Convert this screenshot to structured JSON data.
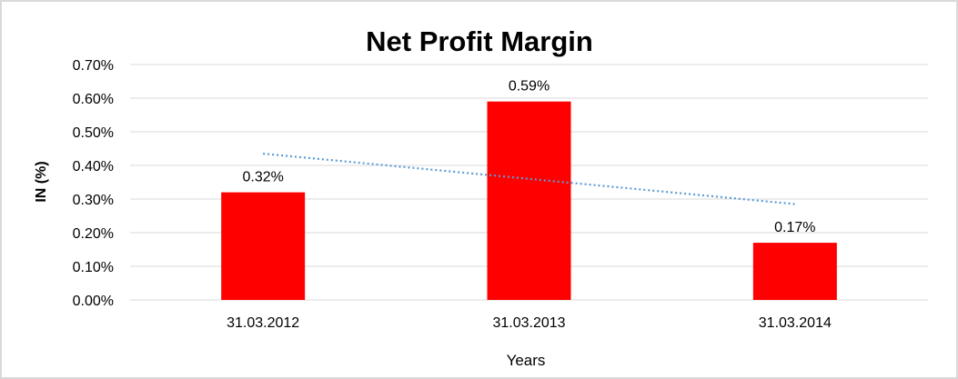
{
  "chart_data": {
    "type": "bar",
    "title": "Net Profit Margin",
    "xlabel": "Years",
    "ylabel": "IN (%)",
    "categories": [
      "31.03.2012",
      "31.03.2013",
      "31.03.2014"
    ],
    "values": [
      0.32,
      0.59,
      0.17
    ],
    "data_labels": [
      "0.32%",
      "0.59%",
      "0.17%"
    ],
    "ylim": [
      0,
      0.7
    ],
    "yticks": [
      "0.00%",
      "0.10%",
      "0.20%",
      "0.30%",
      "0.40%",
      "0.50%",
      "0.60%",
      "0.70%"
    ],
    "grid": true,
    "legend": "none",
    "trendline": {
      "type": "linear",
      "style": "dotted",
      "color": "#5b9bd5"
    },
    "colors": {
      "bar": "#ff0000",
      "grid": "#d9d9d9",
      "trendline": "#5b9bd5"
    }
  }
}
